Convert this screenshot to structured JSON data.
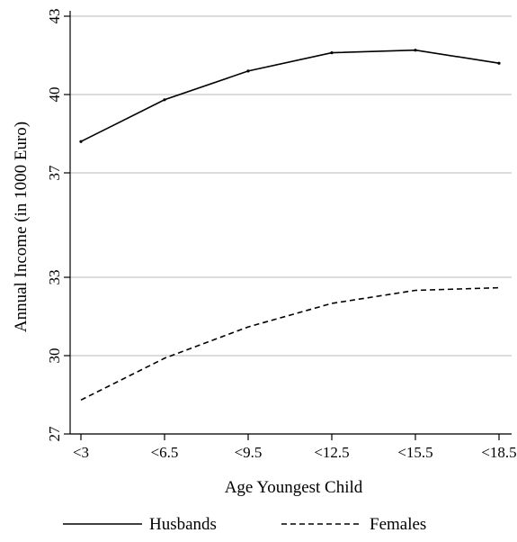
{
  "chart_data": {
    "type": "line",
    "title": "",
    "xlabel": "Age Youngest Child",
    "ylabel": "Annual Income (in 1000 Euro)",
    "categories": [
      "<3",
      "<6.5",
      "<9.5",
      "<12.5",
      "<15.5",
      "<18.5"
    ],
    "ylim": [
      27,
      43
    ],
    "yticks": [
      27,
      30,
      33,
      37,
      40,
      43
    ],
    "grid": true,
    "legend": "bottom",
    "series": [
      {
        "name": "Husbands",
        "style": "solid",
        "color": "#000000",
        "values": [
          38.2,
          39.8,
          40.9,
          41.6,
          41.7,
          41.2
        ]
      },
      {
        "name": "Females",
        "style": "dashed",
        "color": "#000000",
        "values": [
          28.3,
          29.9,
          31.1,
          32.0,
          32.5,
          32.6
        ]
      }
    ]
  }
}
